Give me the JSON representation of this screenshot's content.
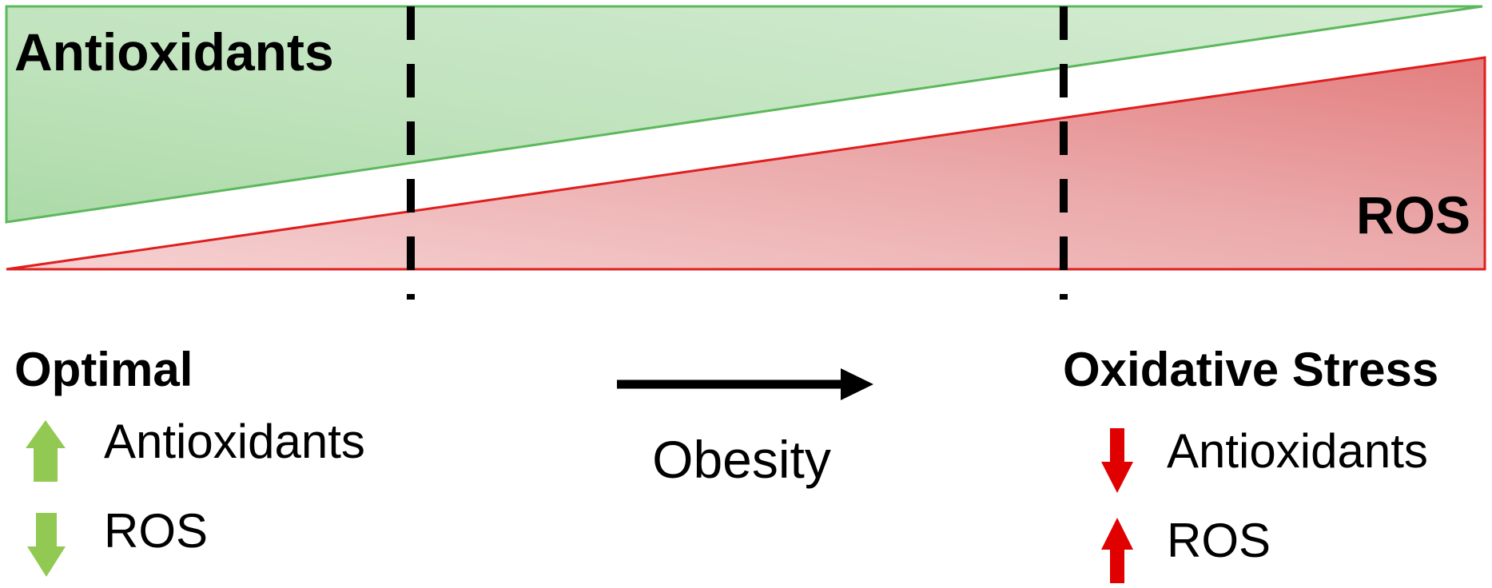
{
  "wedges": {
    "antioxidants_label": "Antioxidants",
    "ros_label": "ROS",
    "antioxidants_color": "#5cb85c",
    "ros_color": "#e01e1e"
  },
  "optimal": {
    "title": "Optimal",
    "antioxidants": "Antioxidants",
    "ros": "ROS",
    "arrow_color": "#92c952"
  },
  "transition": {
    "label": "Obesity"
  },
  "oxidative_stress": {
    "title": "Oxidative Stress",
    "antioxidants": "Antioxidants",
    "ros": "ROS",
    "arrow_color": "#e00000"
  }
}
